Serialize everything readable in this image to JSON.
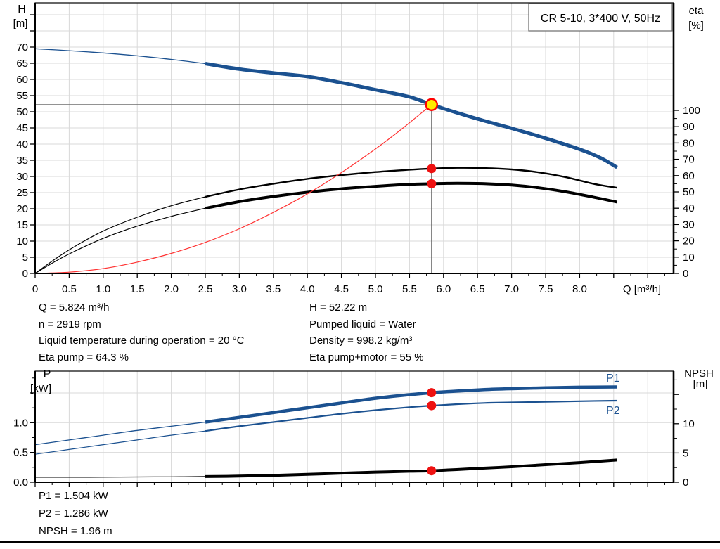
{
  "colors": {
    "curve_blue": "#1b5190",
    "curve_red": "#ff3333",
    "dot_red": "#ee1111",
    "duty_yellow": "#ffec00",
    "duty_ring": "#ff0000",
    "grid": "#d9d9d9",
    "crosshair": "#6e6e6e",
    "axis_black": "#000000",
    "box_border": "#6a6a6a"
  },
  "info_mid": {
    "left": [
      "Q = 5.824 m³/h",
      "n = 2919 rpm",
      "Liquid temperature during operation = 20 °C",
      "Eta pump = 64.3 %"
    ],
    "right": [
      "H = 52.22 m",
      "Pumped liquid = Water",
      "Density = 998.2 kg/m³",
      "Eta pump+motor = 55 %"
    ]
  },
  "info_bottom": [
    "P1 = 1.504 kW",
    "P2 = 1.286 kW",
    "NPSH = 1.96 m"
  ],
  "chart_data": [
    {
      "type": "line",
      "title": "CR 5-10, 3*400 V, 50Hz",
      "x_axis": {
        "label": "Q [m³/h]",
        "tick_labels": [
          "0",
          "0.5",
          "1.0",
          "1.5",
          "2.0",
          "2.5",
          "3.0",
          "3.5",
          "4.0",
          "4.5",
          "5.0",
          "5.5",
          "6.0",
          "6.5",
          "7.0",
          "7.5",
          "8.0"
        ]
      },
      "left_axis": {
        "label": [
          "H",
          "[m]"
        ],
        "tick_labels": [
          "0",
          "5",
          "10",
          "15",
          "20",
          "25",
          "30",
          "35",
          "40",
          "45",
          "50",
          "55",
          "60",
          "65",
          "70"
        ]
      },
      "right_axis": {
        "label": [
          "eta",
          "[%]"
        ],
        "tick_labels": [
          "0",
          "10",
          "20",
          "30",
          "40",
          "50",
          "60",
          "70",
          "80",
          "90",
          "100"
        ]
      },
      "duty_point": {
        "Q": 5.824,
        "H": 52.22,
        "eta_pump": 64.3,
        "eta_pump_motor": 55
      },
      "crosshair": {
        "Q": 5.824,
        "H": 52.22
      },
      "series": [
        {
          "name": "pump-head-curve",
          "axis": "left",
          "color": "#1b5190",
          "width_thin": 1.3,
          "width_thick": 5,
          "thin_until": 2.5,
          "points": [
            [
              0,
              69.5
            ],
            [
              0.5,
              68.9
            ],
            [
              1,
              68.2
            ],
            [
              1.5,
              67.3
            ],
            [
              2,
              66.2
            ],
            [
              2.5,
              64.9
            ],
            [
              3,
              63.2
            ],
            [
              3.5,
              62.0
            ],
            [
              4,
              60.9
            ],
            [
              4.5,
              59.0
            ],
            [
              5,
              56.8
            ],
            [
              5.5,
              54.6
            ],
            [
              5.824,
              52.22
            ],
            [
              6,
              51.0
            ],
            [
              6.5,
              47.8
            ],
            [
              7,
              44.9
            ],
            [
              7.5,
              41.8
            ],
            [
              8,
              38.4
            ],
            [
              8.3,
              35.8
            ],
            [
              8.55,
              32.8
            ]
          ]
        },
        {
          "name": "eta-pump-curve",
          "axis": "right",
          "color": "#000000",
          "width_thin": 1.2,
          "width_thick": 2.4,
          "thin_until": 2.5,
          "points": [
            [
              0,
              0
            ],
            [
              0.3,
              9
            ],
            [
              0.6,
              17
            ],
            [
              1,
              26
            ],
            [
              1.5,
              34.5
            ],
            [
              2,
              41.5
            ],
            [
              2.5,
              47
            ],
            [
              3,
              51.5
            ],
            [
              3.5,
              55
            ],
            [
              4,
              58
            ],
            [
              4.5,
              60.3
            ],
            [
              5,
              62.2
            ],
            [
              5.5,
              63.6
            ],
            [
              5.824,
              64.3
            ],
            [
              6.2,
              64.8
            ],
            [
              6.6,
              64.6
            ],
            [
              7,
              63.8
            ],
            [
              7.4,
              62
            ],
            [
              7.8,
              59
            ],
            [
              8.2,
              55
            ],
            [
              8.55,
              52.5
            ]
          ]
        },
        {
          "name": "eta-pump-motor-curve",
          "axis": "right",
          "color": "#000000",
          "width_thin": 1.2,
          "width_thick": 4,
          "thin_until": 2.5,
          "points": [
            [
              0,
              0
            ],
            [
              0.3,
              7.5
            ],
            [
              0.6,
              14
            ],
            [
              1,
              21.5
            ],
            [
              1.5,
              29
            ],
            [
              2,
              35
            ],
            [
              2.5,
              40
            ],
            [
              3,
              44
            ],
            [
              3.5,
              47.2
            ],
            [
              4,
              49.8
            ],
            [
              4.5,
              51.9
            ],
            [
              5,
              53.4
            ],
            [
              5.5,
              54.6
            ],
            [
              5.824,
              55
            ],
            [
              6.2,
              55.3
            ],
            [
              6.6,
              55.1
            ],
            [
              7,
              54.2
            ],
            [
              7.4,
              52.5
            ],
            [
              7.8,
              50
            ],
            [
              8.2,
              46.8
            ],
            [
              8.55,
              43.8
            ]
          ]
        },
        {
          "name": "system-curve",
          "axis": "left",
          "color": "#ff3333",
          "width": 1.2,
          "points": [
            [
              0,
              0
            ],
            [
              0.5,
              0.4
            ],
            [
              1,
              1.5
            ],
            [
              1.5,
              3.5
            ],
            [
              2,
              6.2
            ],
            [
              2.5,
              9.6
            ],
            [
              3,
              13.8
            ],
            [
              3.5,
              18.9
            ],
            [
              4,
              24.6
            ],
            [
              4.5,
              31.2
            ],
            [
              5,
              38.5
            ],
            [
              5.4,
              44.9
            ],
            [
              5.824,
              52.22
            ]
          ]
        }
      ],
      "markers": [
        {
          "name": "duty-point",
          "Q": 5.824,
          "value": 52.22,
          "axis": "left",
          "style": "duty"
        },
        {
          "name": "eta-pump-point",
          "Q": 5.824,
          "value": 64.3,
          "axis": "right",
          "style": "dot"
        },
        {
          "name": "eta-pump-motor-point",
          "Q": 5.824,
          "value": 55,
          "axis": "right",
          "style": "dot"
        }
      ]
    },
    {
      "type": "line",
      "x_axis": {
        "tick_labels": []
      },
      "left_axis": {
        "label": [
          "P",
          "[kW]"
        ],
        "tick_labels": [
          "0.0",
          "0.5",
          "1.0"
        ]
      },
      "right_axis": {
        "label": [
          "NPSH",
          "[m]"
        ],
        "tick_labels": [
          "0",
          "5",
          "10"
        ]
      },
      "duty_point": {
        "Q": 5.824,
        "P1": 1.504,
        "P2": 1.286,
        "NPSH": 1.96
      },
      "series": [
        {
          "name": "p1-curve",
          "label": "P1",
          "axis": "left",
          "color": "#1b5190",
          "width_thin": 1.3,
          "width_thick": 4.5,
          "thin_until": 2.5,
          "points": [
            [
              0,
              0.63
            ],
            [
              0.5,
              0.71
            ],
            [
              1,
              0.79
            ],
            [
              1.5,
              0.87
            ],
            [
              2,
              0.94
            ],
            [
              2.5,
              1.01
            ],
            [
              3,
              1.09
            ],
            [
              3.5,
              1.17
            ],
            [
              4,
              1.25
            ],
            [
              4.5,
              1.33
            ],
            [
              5,
              1.41
            ],
            [
              5.5,
              1.47
            ],
            [
              5.824,
              1.504
            ],
            [
              6.2,
              1.53
            ],
            [
              6.6,
              1.555
            ],
            [
              7,
              1.57
            ],
            [
              7.5,
              1.585
            ],
            [
              8,
              1.595
            ],
            [
              8.55,
              1.6
            ]
          ]
        },
        {
          "name": "p2-curve",
          "label": "P2",
          "axis": "left",
          "color": "#1b5190",
          "width_thin": 1.2,
          "width_thick": 2.2,
          "thin_until": 2.5,
          "points": [
            [
              0,
              0.47
            ],
            [
              0.5,
              0.55
            ],
            [
              1,
              0.63
            ],
            [
              1.5,
              0.71
            ],
            [
              2,
              0.79
            ],
            [
              2.5,
              0.86
            ],
            [
              3,
              0.94
            ],
            [
              3.5,
              1.01
            ],
            [
              4,
              1.08
            ],
            [
              4.5,
              1.15
            ],
            [
              5,
              1.21
            ],
            [
              5.5,
              1.26
            ],
            [
              5.824,
              1.286
            ],
            [
              6.2,
              1.31
            ],
            [
              6.6,
              1.33
            ],
            [
              7,
              1.34
            ],
            [
              7.5,
              1.35
            ],
            [
              8,
              1.36
            ],
            [
              8.55,
              1.37
            ]
          ]
        },
        {
          "name": "npsh-curve",
          "axis": "right",
          "color": "#000000",
          "width_thin": 1.2,
          "width_thick": 4,
          "thin_until": 2.5,
          "points": [
            [
              0,
              0.85
            ],
            [
              0.5,
              0.85
            ],
            [
              1,
              0.87
            ],
            [
              1.5,
              0.9
            ],
            [
              2,
              0.93
            ],
            [
              2.5,
              0.97
            ],
            [
              3,
              1.05
            ],
            [
              3.5,
              1.18
            ],
            [
              4,
              1.35
            ],
            [
              4.5,
              1.55
            ],
            [
              5,
              1.73
            ],
            [
              5.5,
              1.87
            ],
            [
              5.824,
              1.96
            ],
            [
              6.5,
              2.35
            ],
            [
              7,
              2.65
            ],
            [
              7.5,
              3.0
            ],
            [
              8,
              3.35
            ],
            [
              8.55,
              3.8
            ]
          ]
        }
      ],
      "markers": [
        {
          "name": "p1-point",
          "Q": 5.824,
          "value": 1.504,
          "axis": "left",
          "style": "dot"
        },
        {
          "name": "p2-point",
          "Q": 5.824,
          "value": 1.286,
          "axis": "left",
          "style": "dot"
        },
        {
          "name": "npsh-point",
          "Q": 5.824,
          "value": 1.96,
          "axis": "right",
          "style": "dot"
        }
      ]
    }
  ]
}
